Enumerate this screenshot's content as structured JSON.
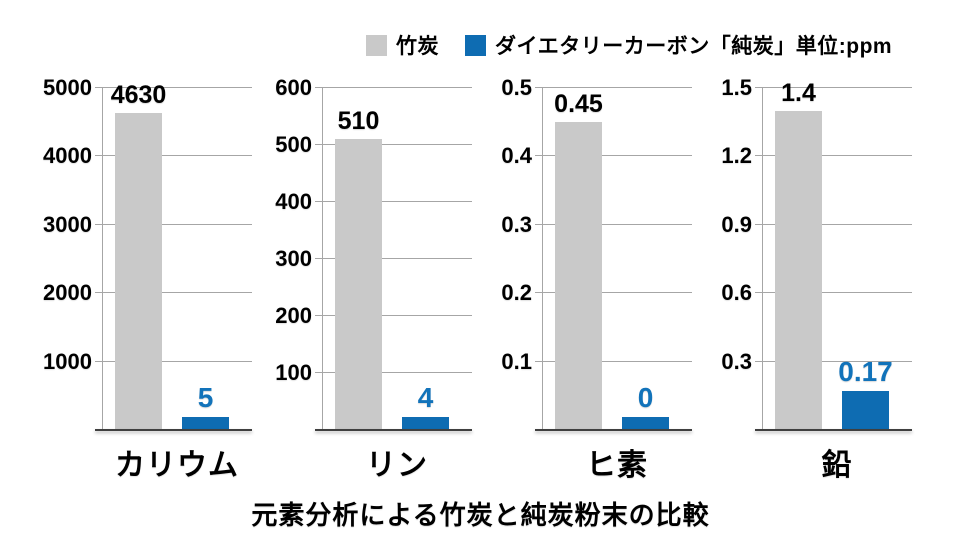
{
  "legend": {
    "items": [
      {
        "name": "bamboo-charcoal",
        "label": "竹炭",
        "color": "#c9c9c9"
      },
      {
        "name": "pure-carbon",
        "label": "ダイエタリーカーボン「純炭」単位:ppm",
        "color": "#0e6cb2"
      }
    ]
  },
  "footer_title": "元素分析による竹炭と純炭粉末の比較",
  "colors": {
    "bamboo_bar": "#c9c9c9",
    "pure_carbon_bar": "#0e6cb2",
    "pure_carbon_label": "#1273ba",
    "gridline": "#a6a6a6",
    "baseline": "#3f3f3f",
    "text": "#000000",
    "background": "#ffffff"
  },
  "chart_data": {
    "type": "bar",
    "unit": "ppm",
    "title": "元素分析による竹炭と純炭粉末の比較",
    "legend_position": "top",
    "grid": true,
    "series_names": [
      "竹炭",
      "ダイエタリーカーボン「純炭」"
    ],
    "panels": [
      {
        "category": "カリウム",
        "ylim": [
          0,
          5000
        ],
        "yticks": [
          1000,
          2000,
          3000,
          4000,
          5000
        ],
        "values": [
          4630,
          5
        ],
        "value_labels": [
          "4630",
          "5"
        ]
      },
      {
        "category": "リン",
        "ylim": [
          0,
          600
        ],
        "yticks": [
          100,
          200,
          300,
          400,
          500,
          600
        ],
        "values": [
          510,
          4
        ],
        "value_labels": [
          "510",
          "4"
        ]
      },
      {
        "category": "ヒ素",
        "ylim": [
          0,
          0.5
        ],
        "yticks": [
          0.1,
          0.2,
          0.3,
          0.4,
          0.5
        ],
        "values": [
          0.45,
          0
        ],
        "value_labels": [
          "0.45",
          "0"
        ]
      },
      {
        "category": "鉛",
        "ylim": [
          0,
          1.5
        ],
        "yticks": [
          0.3,
          0.6,
          0.9,
          1.2,
          1.5
        ],
        "values": [
          1.4,
          0.17
        ],
        "value_labels": [
          "1.4",
          "0.17"
        ]
      }
    ]
  }
}
